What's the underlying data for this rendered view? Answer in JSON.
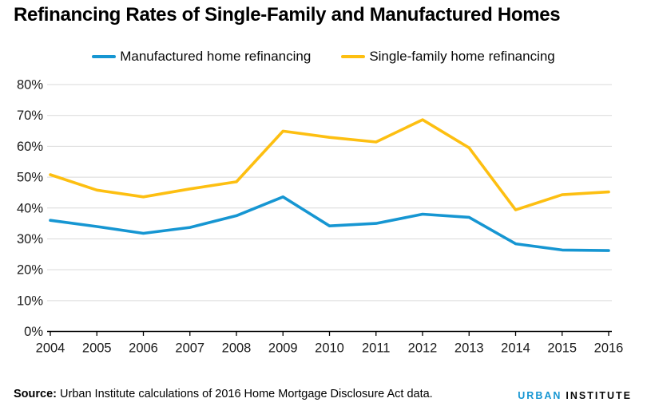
{
  "page": {
    "title": "Refinancing Rates of Single-Family and Manufactured Homes",
    "source_label": "Source:",
    "source_text": "Urban Institute calculations of 2016 Home Mortgage Disclosure Act data.",
    "logo": {
      "part1": "URBAN",
      "part2": "INSTITUTE"
    }
  },
  "colors": {
    "brand_blue": "#1696d2",
    "brand_yellow": "#fdbf11",
    "logo_urban": "#1696d2",
    "logo_institute": "#0a0a0a",
    "gridline": "#d9d9d9",
    "axis": "#000000",
    "text": "#000000"
  },
  "chart_data": {
    "type": "line",
    "title": "Refinancing Rates of Single-Family and Manufactured Homes",
    "x": [
      2004,
      2005,
      2006,
      2007,
      2008,
      2009,
      2010,
      2011,
      2012,
      2013,
      2014,
      2015,
      2016
    ],
    "series": [
      {
        "name": "Manufactured home refinancing",
        "color": "#1696d2",
        "values": [
          36,
          34,
          31.8,
          33.7,
          37.5,
          43.6,
          34.2,
          35,
          38,
          37,
          28.4,
          26.4,
          26.2
        ]
      },
      {
        "name": "Single-family home refinancing",
        "color": "#fdbf11",
        "values": [
          50.8,
          45.8,
          43.6,
          46.2,
          48.5,
          64.9,
          62.9,
          61.4,
          68.6,
          59.5,
          39.4,
          44.3,
          45.2
        ]
      }
    ],
    "y_ticks": [
      "0%",
      "10%",
      "20%",
      "30%",
      "40%",
      "50%",
      "60%",
      "70%",
      "80%"
    ],
    "ylim": [
      0,
      80
    ],
    "xlabel": "",
    "ylabel": "",
    "grid": true,
    "legend_position": "top",
    "unit": "percent"
  }
}
